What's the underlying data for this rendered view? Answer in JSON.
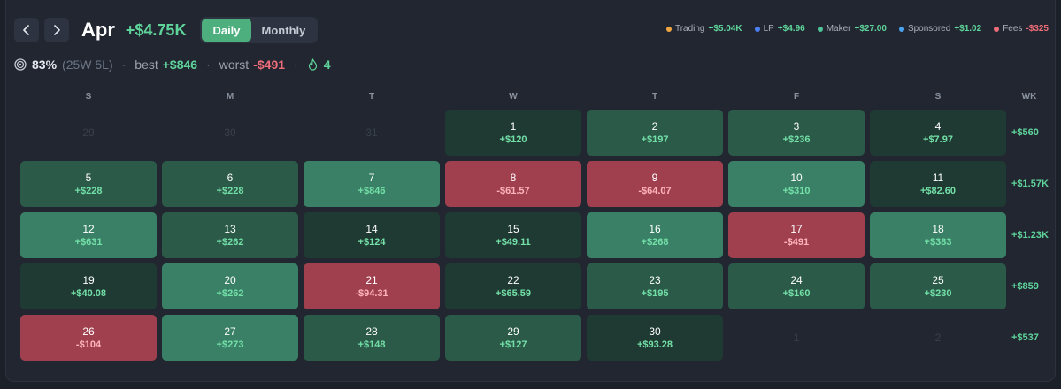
{
  "header": {
    "prev_label": "previous month",
    "next_label": "next month",
    "month": "Apr",
    "total": "+$4.75K",
    "toggle": [
      {
        "label": "Daily",
        "active": true
      },
      {
        "label": "Monthly",
        "active": false
      }
    ]
  },
  "legend": [
    {
      "label": "Trading",
      "value": "+$5.04K",
      "color": "#f0a742",
      "value_color": "#5fd49a"
    },
    {
      "label": "LP",
      "value": "+$4.96",
      "color": "#4d7ff5",
      "value_color": "#5fd49a"
    },
    {
      "label": "Maker",
      "value": "+$27.00",
      "color": "#4fc39a",
      "value_color": "#5fd49a"
    },
    {
      "label": "Sponsored",
      "value": "+$1.02",
      "color": "#4aa3f0",
      "value_color": "#5fd49a"
    },
    {
      "label": "Fees",
      "value": "-$325",
      "color": "#ef6d78",
      "value_color": "#ef6d78"
    }
  ],
  "stats": {
    "win_rate": "83%",
    "record": "(25W 5L)",
    "best_label": "best",
    "best_value": "+$846",
    "worst_label": "worst",
    "worst_value": "-$491",
    "streak": "4"
  },
  "weekdays": [
    "S",
    "M",
    "T",
    "W",
    "T",
    "F",
    "S"
  ],
  "week_header": "WK",
  "weeks": [
    {
      "total": "+$560",
      "days": [
        {
          "day": "29",
          "value": "",
          "tone": "empty"
        },
        {
          "day": "30",
          "value": "",
          "tone": "empty"
        },
        {
          "day": "31",
          "value": "",
          "tone": "empty"
        },
        {
          "day": "1",
          "value": "+$120",
          "tone": "dark"
        },
        {
          "day": "2",
          "value": "+$197",
          "tone": "mid"
        },
        {
          "day": "3",
          "value": "+$236",
          "tone": "mid"
        },
        {
          "day": "4",
          "value": "+$7.97",
          "tone": "dark"
        }
      ]
    },
    {
      "total": "+$1.57K",
      "days": [
        {
          "day": "5",
          "value": "+$228",
          "tone": "mid"
        },
        {
          "day": "6",
          "value": "+$228",
          "tone": "mid"
        },
        {
          "day": "7",
          "value": "+$846",
          "tone": "light"
        },
        {
          "day": "8",
          "value": "-$61.57",
          "tone": "red"
        },
        {
          "day": "9",
          "value": "-$64.07",
          "tone": "red"
        },
        {
          "day": "10",
          "value": "+$310",
          "tone": "light"
        },
        {
          "day": "11",
          "value": "+$82.60",
          "tone": "dark"
        }
      ]
    },
    {
      "total": "+$1.23K",
      "days": [
        {
          "day": "12",
          "value": "+$631",
          "tone": "light"
        },
        {
          "day": "13",
          "value": "+$262",
          "tone": "mid"
        },
        {
          "day": "14",
          "value": "+$124",
          "tone": "dark"
        },
        {
          "day": "15",
          "value": "+$49.11",
          "tone": "dark"
        },
        {
          "day": "16",
          "value": "+$268",
          "tone": "light"
        },
        {
          "day": "17",
          "value": "-$491",
          "tone": "red"
        },
        {
          "day": "18",
          "value": "+$383",
          "tone": "light"
        }
      ]
    },
    {
      "total": "+$859",
      "days": [
        {
          "day": "19",
          "value": "+$40.08",
          "tone": "dark"
        },
        {
          "day": "20",
          "value": "+$262",
          "tone": "light"
        },
        {
          "day": "21",
          "value": "-$94.31",
          "tone": "red"
        },
        {
          "day": "22",
          "value": "+$65.59",
          "tone": "dark"
        },
        {
          "day": "23",
          "value": "+$195",
          "tone": "mid"
        },
        {
          "day": "24",
          "value": "+$160",
          "tone": "mid"
        },
        {
          "day": "25",
          "value": "+$230",
          "tone": "mid"
        }
      ]
    },
    {
      "total": "+$537",
      "days": [
        {
          "day": "26",
          "value": "-$104",
          "tone": "red"
        },
        {
          "day": "27",
          "value": "+$273",
          "tone": "light"
        },
        {
          "day": "28",
          "value": "+$148",
          "tone": "mid"
        },
        {
          "day": "29",
          "value": "+$127",
          "tone": "mid"
        },
        {
          "day": "30",
          "value": "+$93.28",
          "tone": "dark"
        },
        {
          "day": "1",
          "value": "",
          "tone": "empty"
        },
        {
          "day": "2",
          "value": "",
          "tone": "empty"
        }
      ]
    }
  ]
}
